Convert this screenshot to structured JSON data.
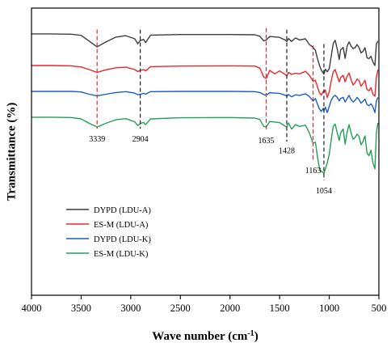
{
  "chart_data": {
    "type": "line",
    "title": "",
    "xlabel": "Wave number (cm",
    "xlabel_sup": "-1",
    "xlabel_tail": ")",
    "ylabel": "Transmittance (%)",
    "xlim": [
      4000,
      500
    ],
    "x_reversed": true,
    "x_ticks": [
      4000,
      3500,
      3000,
      2500,
      2000,
      1500,
      1000,
      500
    ],
    "x_tick_labels": [
      "4000",
      "3500",
      "3000",
      "2500",
      "2000",
      "1500",
      "1000",
      "500"
    ],
    "y_ticks_shown": false,
    "ylim": [
      0,
      100
    ],
    "grid": false,
    "legend_position": "bottom-left",
    "series": [
      {
        "name": "DYPD (LDU-A)",
        "color": "#3d3d3d",
        "points": [
          [
            4000,
            91
          ],
          [
            3800,
            91
          ],
          [
            3600,
            90.9
          ],
          [
            3500,
            90.5
          ],
          [
            3420,
            88.5
          ],
          [
            3339,
            86.5
          ],
          [
            3250,
            88.2
          ],
          [
            3150,
            89.9
          ],
          [
            3050,
            90.4
          ],
          [
            2960,
            89.3
          ],
          [
            2930,
            87.6
          ],
          [
            2904,
            88.7
          ],
          [
            2870,
            89.1
          ],
          [
            2850,
            88.0
          ],
          [
            2800,
            90.6
          ],
          [
            2500,
            90.8
          ],
          [
            2000,
            90.8
          ],
          [
            1750,
            90.7
          ],
          [
            1700,
            90.2
          ],
          [
            1660,
            88.6
          ],
          [
            1635,
            88.9
          ],
          [
            1600,
            90.1
          ],
          [
            1500,
            89.8
          ],
          [
            1440,
            88.8
          ],
          [
            1428,
            88.4
          ],
          [
            1410,
            89.4
          ],
          [
            1380,
            88.4
          ],
          [
            1340,
            89.6
          ],
          [
            1300,
            88.9
          ],
          [
            1240,
            89.3
          ],
          [
            1200,
            87.3
          ],
          [
            1163,
            86.3
          ],
          [
            1140,
            85.3
          ],
          [
            1120,
            82.6
          ],
          [
            1100,
            80.2
          ],
          [
            1080,
            78.4
          ],
          [
            1060,
            77.4
          ],
          [
            1054,
            77.0
          ],
          [
            1040,
            78.7
          ],
          [
            1020,
            77.8
          ],
          [
            1000,
            78.9
          ],
          [
            980,
            83.3
          ],
          [
            960,
            87.7
          ],
          [
            940,
            88.8
          ],
          [
            920,
            85.8
          ],
          [
            900,
            82.1
          ],
          [
            885,
            85.5
          ],
          [
            860,
            86.3
          ],
          [
            840,
            82.5
          ],
          [
            820,
            86.8
          ],
          [
            800,
            88.2
          ],
          [
            780,
            86.8
          ],
          [
            760,
            85.9
          ],
          [
            740,
            86.2
          ],
          [
            720,
            87.3
          ],
          [
            700,
            86.3
          ],
          [
            680,
            84.4
          ],
          [
            660,
            84.9
          ],
          [
            640,
            86.2
          ],
          [
            620,
            82.7
          ],
          [
            600,
            82.4
          ],
          [
            580,
            83.2
          ],
          [
            560,
            81.2
          ],
          [
            540,
            80.0
          ],
          [
            525,
            87.5
          ],
          [
            510,
            88.5
          ]
        ]
      },
      {
        "name": "ES-M (LDU-A)",
        "color": "#e8262a",
        "points": [
          [
            4000,
            80
          ],
          [
            3800,
            80
          ],
          [
            3600,
            79.9
          ],
          [
            3500,
            79.5
          ],
          [
            3420,
            78.6
          ],
          [
            3339,
            77.6
          ],
          [
            3250,
            78.5
          ],
          [
            3150,
            79.2
          ],
          [
            3050,
            79.4
          ],
          [
            2960,
            78.6
          ],
          [
            2930,
            77.9
          ],
          [
            2904,
            78.3
          ],
          [
            2870,
            78.6
          ],
          [
            2850,
            78.1
          ],
          [
            2800,
            79.6
          ],
          [
            2500,
            79.8
          ],
          [
            2000,
            79.9
          ],
          [
            1750,
            79.8
          ],
          [
            1700,
            79.1
          ],
          [
            1660,
            76.0
          ],
          [
            1635,
            75.5
          ],
          [
            1600,
            78.3
          ],
          [
            1550,
            77.1
          ],
          [
            1500,
            78.1
          ],
          [
            1440,
            76.8
          ],
          [
            1428,
            76.3
          ],
          [
            1410,
            77.6
          ],
          [
            1380,
            76.9
          ],
          [
            1340,
            77.3
          ],
          [
            1300,
            77.1
          ],
          [
            1240,
            78.0
          ],
          [
            1200,
            76.6
          ],
          [
            1163,
            74.5
          ],
          [
            1140,
            74.9
          ],
          [
            1120,
            72.7
          ],
          [
            1100,
            70.6
          ],
          [
            1080,
            69.7
          ],
          [
            1060,
            71.0
          ],
          [
            1054,
            70.6
          ],
          [
            1040,
            71.5
          ],
          [
            1020,
            68.9
          ],
          [
            1000,
            70.9
          ],
          [
            980,
            74.6
          ],
          [
            960,
            77.8
          ],
          [
            940,
            78.6
          ],
          [
            920,
            76.3
          ],
          [
            900,
            74.3
          ],
          [
            885,
            75.8
          ],
          [
            860,
            76.6
          ],
          [
            840,
            74.3
          ],
          [
            820,
            76.2
          ],
          [
            800,
            77.4
          ],
          [
            780,
            75.1
          ],
          [
            760,
            73.2
          ],
          [
            740,
            74.0
          ],
          [
            720,
            75.3
          ],
          [
            700,
            74.8
          ],
          [
            680,
            72.8
          ],
          [
            660,
            73.7
          ],
          [
            640,
            74.8
          ],
          [
            620,
            71.6
          ],
          [
            600,
            71.2
          ],
          [
            580,
            72.3
          ],
          [
            560,
            70.0
          ],
          [
            540,
            69.3
          ],
          [
            525,
            75.9
          ],
          [
            510,
            78.5
          ]
        ]
      },
      {
        "name": "DYPD (LDU-K)",
        "color": "#1b5cc4",
        "points": [
          [
            4000,
            71
          ],
          [
            3800,
            71
          ],
          [
            3600,
            71
          ],
          [
            3500,
            70.8
          ],
          [
            3420,
            70.0
          ],
          [
            3339,
            69.4
          ],
          [
            3250,
            70.0
          ],
          [
            3150,
            70.6
          ],
          [
            3050,
            70.9
          ],
          [
            2960,
            70.4
          ],
          [
            2930,
            69.8
          ],
          [
            2904,
            70.0
          ],
          [
            2870,
            70.3
          ],
          [
            2850,
            70.0
          ],
          [
            2800,
            70.9
          ],
          [
            2500,
            71
          ],
          [
            2000,
            71
          ],
          [
            1750,
            70.9
          ],
          [
            1700,
            70.6
          ],
          [
            1660,
            69.9
          ],
          [
            1635,
            69.7
          ],
          [
            1600,
            70.5
          ],
          [
            1500,
            70.3
          ],
          [
            1440,
            69.6
          ],
          [
            1428,
            69.3
          ],
          [
            1410,
            69.9
          ],
          [
            1380,
            69.1
          ],
          [
            1340,
            69.8
          ],
          [
            1300,
            69.6
          ],
          [
            1240,
            70.1
          ],
          [
            1200,
            69.2
          ],
          [
            1163,
            67.6
          ],
          [
            1140,
            68.5
          ],
          [
            1120,
            66.7
          ],
          [
            1100,
            64.9
          ],
          [
            1080,
            64.0
          ],
          [
            1060,
            65.1
          ],
          [
            1054,
            64.2
          ],
          [
            1040,
            65.5
          ],
          [
            1020,
            63.6
          ],
          [
            1000,
            65.8
          ],
          [
            980,
            67.9
          ],
          [
            960,
            69.1
          ],
          [
            940,
            69.6
          ],
          [
            920,
            68.9
          ],
          [
            900,
            67.7
          ],
          [
            885,
            68.5
          ],
          [
            860,
            68.9
          ],
          [
            840,
            67.3
          ],
          [
            820,
            68.5
          ],
          [
            800,
            69.6
          ],
          [
            780,
            68.1
          ],
          [
            760,
            67.3
          ],
          [
            740,
            67.9
          ],
          [
            720,
            68.9
          ],
          [
            700,
            68.1
          ],
          [
            680,
            66.9
          ],
          [
            660,
            67.5
          ],
          [
            640,
            68.3
          ],
          [
            620,
            66.4
          ],
          [
            600,
            66.0
          ],
          [
            580,
            66.7
          ],
          [
            560,
            65.6
          ],
          [
            540,
            63.6
          ],
          [
            525,
            67.6
          ],
          [
            510,
            68.9
          ]
        ]
      },
      {
        "name": "ES-M (LDU-K)",
        "color": "#23a055",
        "points": [
          [
            4000,
            62
          ],
          [
            3800,
            62
          ],
          [
            3600,
            61.9
          ],
          [
            3500,
            61.4
          ],
          [
            3420,
            59.9
          ],
          [
            3339,
            58.6
          ],
          [
            3250,
            59.9
          ],
          [
            3150,
            61.1
          ],
          [
            3050,
            61.5
          ],
          [
            2960,
            60.4
          ],
          [
            2930,
            59.1
          ],
          [
            2904,
            59.8
          ],
          [
            2870,
            60.2
          ],
          [
            2850,
            59.4
          ],
          [
            2800,
            61.4
          ],
          [
            2500,
            61.8
          ],
          [
            2000,
            61.9
          ],
          [
            1750,
            61.7
          ],
          [
            1700,
            61.2
          ],
          [
            1660,
            58.8
          ],
          [
            1635,
            58.6
          ],
          [
            1600,
            60.5
          ],
          [
            1500,
            60.1
          ],
          [
            1440,
            58.8
          ],
          [
            1428,
            58.6
          ],
          [
            1410,
            60.0
          ],
          [
            1380,
            57.9
          ],
          [
            1340,
            59.4
          ],
          [
            1300,
            58.8
          ],
          [
            1240,
            59.2
          ],
          [
            1200,
            56.5
          ],
          [
            1163,
            52.9
          ],
          [
            1140,
            53.3
          ],
          [
            1120,
            48.6
          ],
          [
            1100,
            44.3
          ],
          [
            1080,
            43.1
          ],
          [
            1060,
            42.7
          ],
          [
            1054,
            42.4
          ],
          [
            1040,
            43.9
          ],
          [
            1020,
            46.1
          ],
          [
            1000,
            49.1
          ],
          [
            980,
            54.1
          ],
          [
            960,
            58.8
          ],
          [
            940,
            59.6
          ],
          [
            920,
            56.6
          ],
          [
            900,
            53.9
          ],
          [
            885,
            56.5
          ],
          [
            860,
            57.9
          ],
          [
            840,
            52.6
          ],
          [
            820,
            56.8
          ],
          [
            800,
            59.4
          ],
          [
            780,
            56.5
          ],
          [
            760,
            54.3
          ],
          [
            740,
            54.9
          ],
          [
            720,
            56.1
          ],
          [
            700,
            55.3
          ],
          [
            680,
            52.4
          ],
          [
            660,
            53.5
          ],
          [
            640,
            55.5
          ],
          [
            620,
            49.6
          ],
          [
            600,
            48.6
          ],
          [
            580,
            50.5
          ],
          [
            560,
            46.1
          ],
          [
            540,
            44.0
          ],
          [
            525,
            56.5
          ],
          [
            510,
            60.0
          ]
        ]
      }
    ],
    "markers": [
      {
        "x": 3339,
        "label": "3339",
        "color": "#e8262a",
        "y_top": 92.5,
        "y_bottom": 58.0,
        "label_y": 53.5
      },
      {
        "x": 2904,
        "label": "2904",
        "color": "#222222",
        "y_top": 92.5,
        "y_bottom": 58.0,
        "label_y": 53.5
      },
      {
        "x": 1635,
        "label": "1635",
        "color": "#e8262a",
        "y_top": 93.0,
        "y_bottom": 57.5,
        "label_y": 53.0
      },
      {
        "x": 1428,
        "label": "1428",
        "color": "#222222",
        "y_top": 92.5,
        "y_bottom": 53.5,
        "label_y": 49.5
      },
      {
        "x": 1163,
        "label": "1163",
        "color": "#e8262a",
        "y_top": 87.0,
        "y_bottom": 46.5,
        "label_y": 42.5
      },
      {
        "x": 1054,
        "label": "1054",
        "color": "#222222",
        "y_top": 87.5,
        "y_bottom": 40.0,
        "label_y": 35.5
      }
    ]
  }
}
